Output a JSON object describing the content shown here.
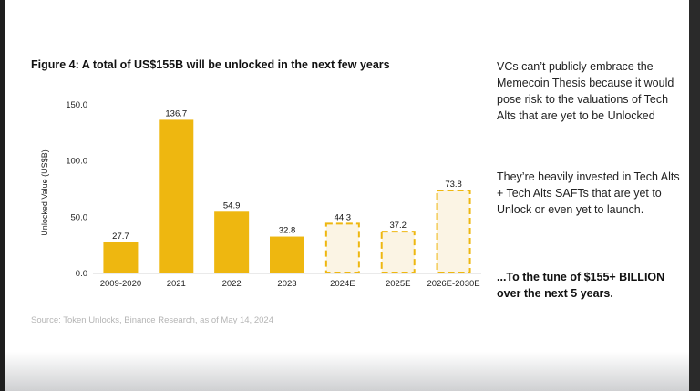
{
  "figure_title": "Figure 4: A total of US$155B will be unlocked in the next few years",
  "source_text": "Source: Token Unlocks, Binance Research, as of May 14, 2024",
  "side_text": {
    "p1": "VCs can’t publicly embrace the Memecoin Thesis because it would pose risk to the valuations of Tech Alts that are yet to be Unlocked",
    "p2": "They’re heavily invested in Tech Alts + Tech Alts SAFTs that are yet to Unlock or even yet to launch.",
    "p3": "...To the tune of $155+ BILLION over the next 5 years."
  },
  "colors": {
    "bar_actual": "#eeb710",
    "bar_estimate_fill": "#fbf4e4",
    "bar_estimate_stroke": "#eeb710",
    "axis": "#d5d5d5",
    "text": "#222222"
  },
  "chart_data": {
    "type": "bar",
    "title": "Figure 4: A total of US$155B will be unlocked in the next few years",
    "xlabel": "",
    "ylabel": "Unlocked Value (US$B)",
    "ylim": [
      0,
      150
    ],
    "yticks": [
      "0.0",
      "50.0",
      "100.0",
      "150.0"
    ],
    "categories": [
      "2009-2020",
      "2021",
      "2022",
      "2023",
      "2024E",
      "2025E",
      "2026E-2030E"
    ],
    "values": [
      27.7,
      136.7,
      54.9,
      32.8,
      44.3,
      37.2,
      73.8
    ],
    "value_labels": [
      "27.7",
      "136.7",
      "54.9",
      "32.8",
      "44.3",
      "37.2",
      "73.8"
    ],
    "estimate": [
      false,
      false,
      false,
      false,
      true,
      true,
      true
    ],
    "grid": false,
    "legend": "none"
  }
}
